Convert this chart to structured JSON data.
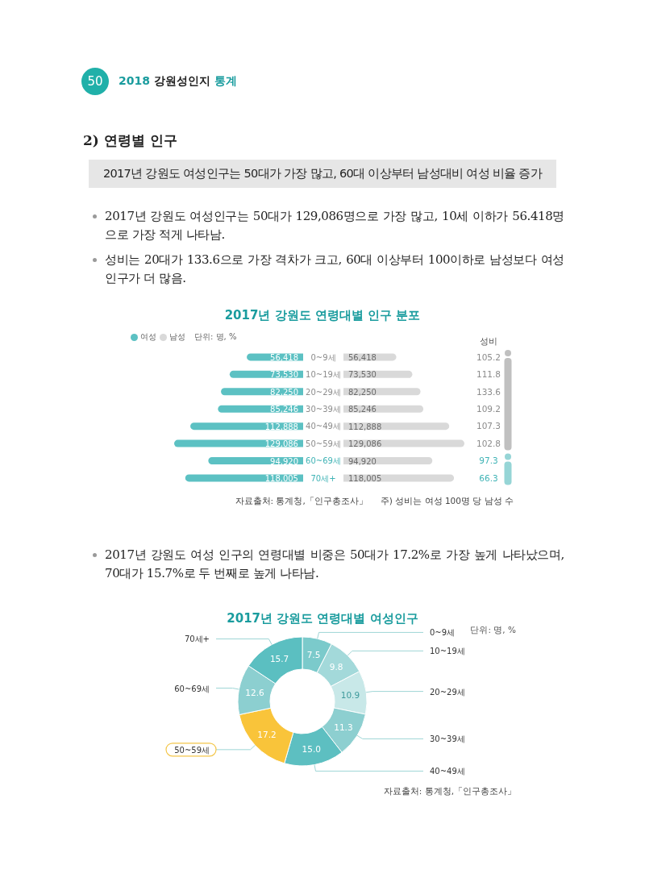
{
  "chart_data": [
    {
      "type": "other",
      "annotations": [
        "50",
        "2018 강원성인지 통계"
      ]
    },
    {
      "type": "other",
      "title": "2) 연령별 인구",
      "subtitle": "2017년 강원도 여성인구는 50대가 가장 많고, 60대 이상부터 남성대비 여성 비율 증가",
      "annotations": [
        "2017년 강원도 여성인구는 50대가 129,086명으로 가장 많고, 10세 이하가 56.418명으로 가장 적게 나타남.",
        "성비는 20대가 133.6으로 가장 격차가 크고, 60대 이상부터 100이하로 남성보다 여성 인구가 더 많음."
      ]
    },
    {
      "type": "bar",
      "orientation": "horizontal",
      "title": "2017년 강원도 연령대별 인구 분포",
      "subtitle": "단위: 명, %",
      "categories": [
        "0~9세",
        "10~19세",
        "20~29세",
        "30~39세",
        "40~49세",
        "50~59세",
        "60~69세",
        "70세+"
      ],
      "series": [
        {
          "name": "여성",
          "color": "#5cc1c3",
          "values": [
            56418,
            73530,
            82250,
            85246,
            112888,
            129086,
            94920,
            118005
          ],
          "value_labels": [
            "56,418",
            "73,530",
            "82,250",
            "85,246",
            "112,888",
            "129,086",
            "94,920",
            "118,005"
          ]
        }
      ],
      "legend": "top left",
      "tick_labels": false
    },
    {
      "type": "bar",
      "orientation": "horizontal",
      "categories": [
        "0~9세",
        "10~19세",
        "20~29세",
        "30~39세",
        "40~49세",
        "50~59세",
        "60~69세",
        "70세+"
      ],
      "series": [
        {
          "name": "남성",
          "color": "#d9d9d9",
          "values": [
            56418,
            73530,
            82250,
            85246,
            112888,
            129086,
            94920,
            118005
          ],
          "value_labels": [
            "56,418",
            "73,530",
            "82,250",
            "85,246",
            "112,888",
            "129,086",
            "94,920",
            "118,005"
          ]
        }
      ],
      "legend": "top left",
      "tick_labels": "y",
      "annotations": [
        "자료출처: 통계청,「인구총조사」",
        "주) 성비는 여성 100명 당 남성 수"
      ]
    },
    {
      "type": "other",
      "title": "성비",
      "categories": [
        null,
        null,
        null,
        null,
        null,
        null,
        null,
        null
      ],
      "values": [
        105.2,
        111.8,
        133.6,
        109.2,
        107.3,
        102.8,
        97.3,
        66.3
      ],
      "colors": [
        "#8c8c8c",
        "#8c8c8c",
        "#8c8c8c",
        "#8c8c8c",
        "#8c8c8c",
        "#8c8c8c",
        "#3fb3b5",
        "#3fb3b5"
      ],
      "data_labels": true
    },
    {
      "type": "other",
      "annotations": [
        "2017년 강원도 여성 인구의 연령대별 비중은 50대가 17.2%로 가장 높게 나타났으며, 70대가 15.7%로 두 번째로 높게 나타남."
      ]
    },
    {
      "type": "donut",
      "title": "2017년 강원도 연령대별 여성인구",
      "subtitle": "단위: 명, %",
      "categories": [
        "0~9세",
        "10~19세",
        "20~29세",
        "30~39세",
        "40~49세",
        "50~59세",
        "60~69세",
        "70세+"
      ],
      "values": [
        7.5,
        9.8,
        10.9,
        11.3,
        15.0,
        17.2,
        12.6,
        15.7
      ],
      "colors": [
        "#7bcacb",
        "#a3d9da",
        "#c8e8e8",
        "#8dcfd0",
        "#5dbfc1",
        "#f9c43a",
        "#8ccfd0",
        "#5bbfc1"
      ],
      "value_labels": [
        "7.5",
        "9.8",
        "10.9",
        "11.3",
        "15.0",
        "17.2",
        "12.6",
        "15.7"
      ],
      "annotations": [
        "자료출처: 통계청,「인구총조사」"
      ]
    }
  ]
}
